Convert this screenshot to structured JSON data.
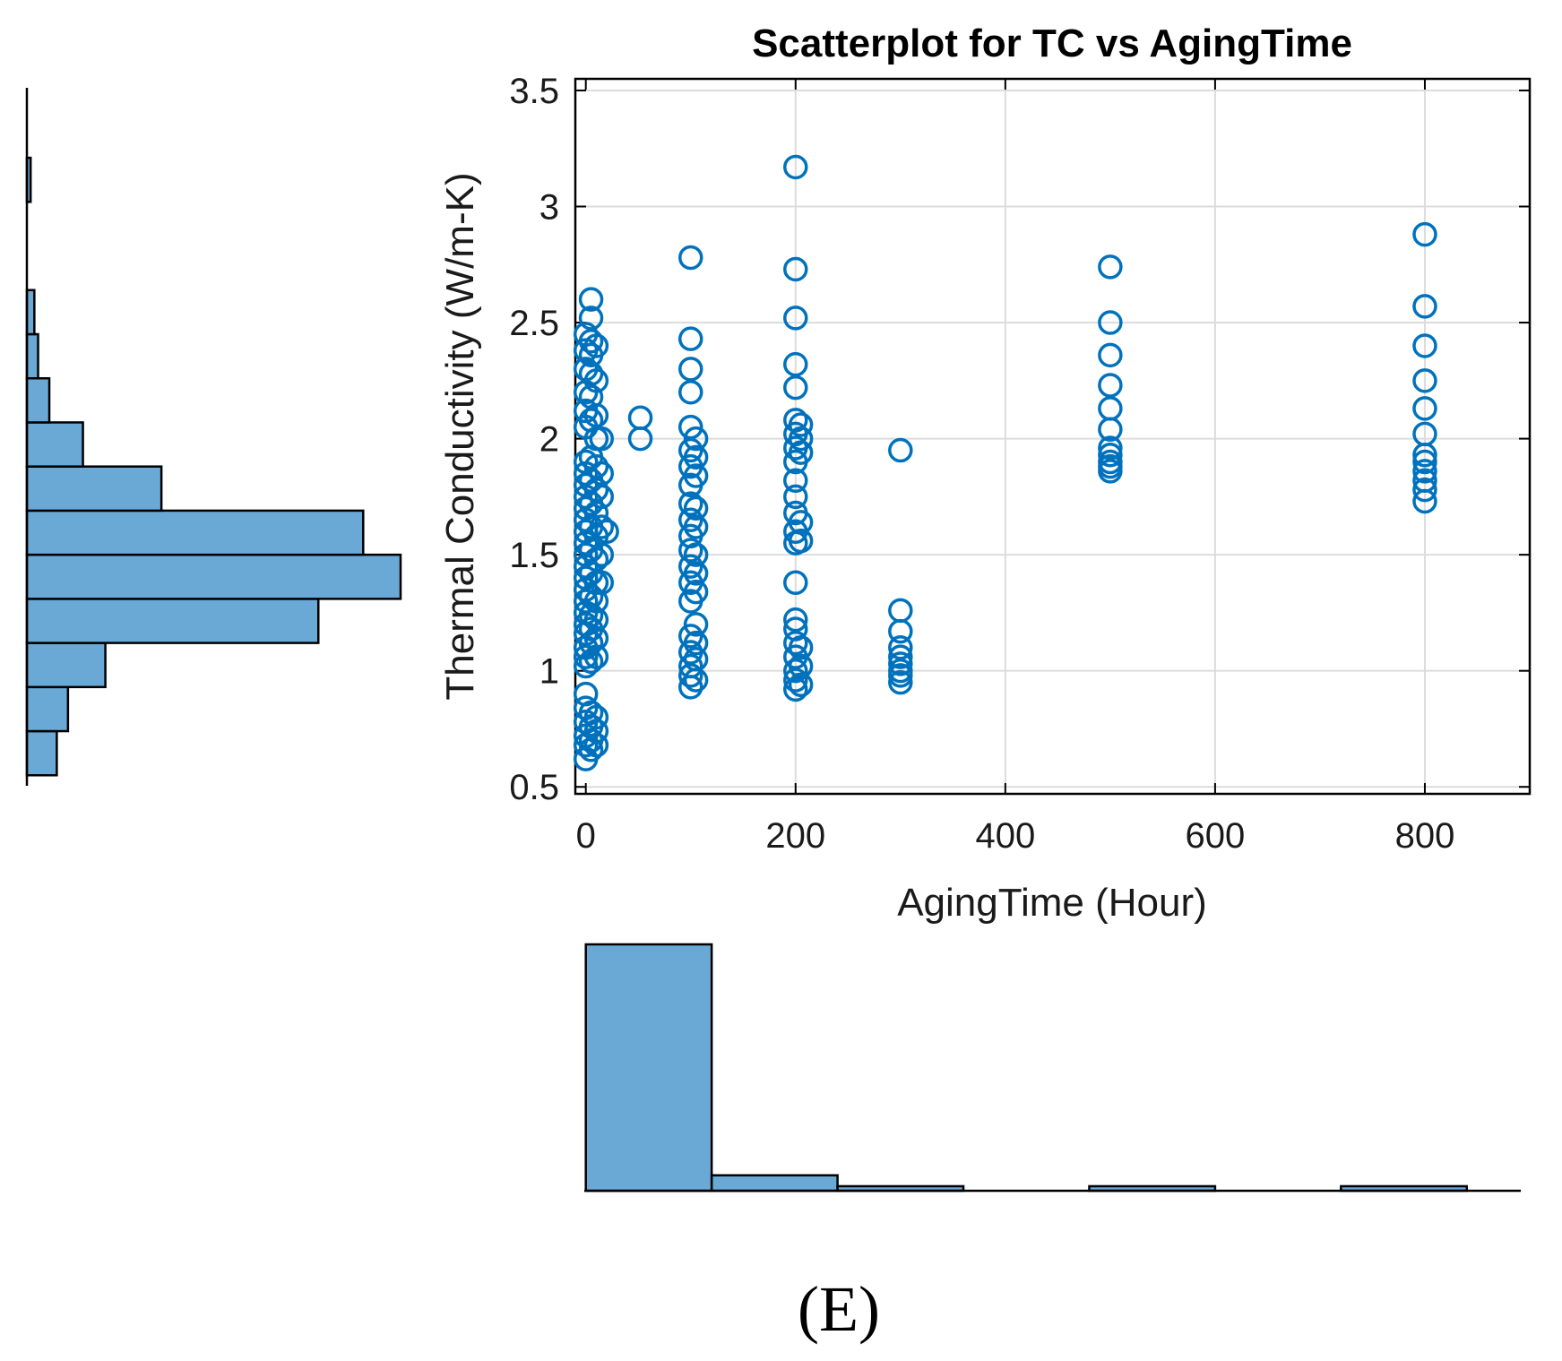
{
  "chart_data": [
    {
      "id": "scatter",
      "type": "scatter",
      "title": "Scatterplot for TC vs AgingTime",
      "xlabel": "AgingTime (Hour)",
      "ylabel": "Thermal Conductivity (W/m-K)",
      "xlim": [
        -10,
        900
      ],
      "ylim": [
        0.47,
        3.55
      ],
      "xticks": [
        0,
        200,
        400,
        600,
        800
      ],
      "yticks": [
        0.5,
        1,
        1.5,
        2,
        2.5,
        3,
        3.5
      ],
      "grid": true,
      "marker": "open-circle",
      "color": "#0072BD",
      "series": [
        {
          "name": "TC",
          "points": [
            [
              0,
              0.62
            ],
            [
              0,
              0.68
            ],
            [
              0,
              0.72
            ],
            [
              0,
              0.78
            ],
            [
              0,
              0.84
            ],
            [
              0,
              0.9
            ],
            [
              0,
              1.02
            ],
            [
              0,
              1.06
            ],
            [
              0,
              1.1
            ],
            [
              0,
              1.16
            ],
            [
              0,
              1.2
            ],
            [
              0,
              1.25
            ],
            [
              0,
              1.3
            ],
            [
              0,
              1.35
            ],
            [
              0,
              1.4
            ],
            [
              0,
              1.45
            ],
            [
              0,
              1.5
            ],
            [
              0,
              1.55
            ],
            [
              0,
              1.6
            ],
            [
              0,
              1.65
            ],
            [
              0,
              1.7
            ],
            [
              0,
              1.75
            ],
            [
              0,
              1.8
            ],
            [
              0,
              1.85
            ],
            [
              0,
              1.9
            ],
            [
              0,
              2.05
            ],
            [
              0,
              2.12
            ],
            [
              0,
              2.2
            ],
            [
              0,
              2.3
            ],
            [
              0,
              2.38
            ],
            [
              0,
              2.45
            ],
            [
              5,
              0.66
            ],
            [
              5,
              0.7
            ],
            [
              5,
              0.76
            ],
            [
              5,
              0.82
            ],
            [
              5,
              1.04
            ],
            [
              5,
              1.12
            ],
            [
              5,
              1.18
            ],
            [
              5,
              1.24
            ],
            [
              5,
              1.32
            ],
            [
              5,
              1.42
            ],
            [
              5,
              1.52
            ],
            [
              5,
              1.62
            ],
            [
              5,
              1.72
            ],
            [
              5,
              1.82
            ],
            [
              5,
              1.92
            ],
            [
              5,
              2.08
            ],
            [
              5,
              2.18
            ],
            [
              5,
              2.28
            ],
            [
              5,
              2.36
            ],
            [
              5,
              2.42
            ],
            [
              5,
              2.52
            ],
            [
              5,
              2.6
            ],
            [
              10,
              0.68
            ],
            [
              10,
              0.74
            ],
            [
              10,
              0.8
            ],
            [
              10,
              1.06
            ],
            [
              10,
              1.14
            ],
            [
              10,
              1.22
            ],
            [
              10,
              1.3
            ],
            [
              10,
              1.38
            ],
            [
              10,
              1.48
            ],
            [
              10,
              1.58
            ],
            [
              10,
              1.68
            ],
            [
              10,
              1.78
            ],
            [
              10,
              1.88
            ],
            [
              10,
              2.0
            ],
            [
              10,
              2.1
            ],
            [
              10,
              2.25
            ],
            [
              10,
              2.4
            ],
            [
              15,
              1.38
            ],
            [
              15,
              1.5
            ],
            [
              15,
              1.62
            ],
            [
              15,
              1.75
            ],
            [
              15,
              1.85
            ],
            [
              15,
              2.0
            ],
            [
              20,
              1.6
            ],
            [
              52,
              2.0
            ],
            [
              52,
              2.09
            ],
            [
              100,
              0.93
            ],
            [
              100,
              0.98
            ],
            [
              100,
              1.02
            ],
            [
              100,
              1.08
            ],
            [
              100,
              1.15
            ],
            [
              100,
              1.3
            ],
            [
              100,
              1.38
            ],
            [
              100,
              1.45
            ],
            [
              100,
              1.52
            ],
            [
              100,
              1.58
            ],
            [
              100,
              1.65
            ],
            [
              100,
              1.72
            ],
            [
              100,
              1.8
            ],
            [
              100,
              1.88
            ],
            [
              100,
              1.95
            ],
            [
              100,
              2.05
            ],
            [
              100,
              2.2
            ],
            [
              100,
              2.3
            ],
            [
              100,
              2.43
            ],
            [
              100,
              2.78
            ],
            [
              105,
              0.96
            ],
            [
              105,
              1.05
            ],
            [
              105,
              1.12
            ],
            [
              105,
              1.2
            ],
            [
              105,
              1.34
            ],
            [
              105,
              1.42
            ],
            [
              105,
              1.5
            ],
            [
              105,
              1.62
            ],
            [
              105,
              1.7
            ],
            [
              105,
              1.84
            ],
            [
              105,
              1.92
            ],
            [
              105,
              2.0
            ],
            [
              200,
              0.92
            ],
            [
              200,
              0.96
            ],
            [
              200,
              1.0
            ],
            [
              200,
              1.06
            ],
            [
              200,
              1.12
            ],
            [
              200,
              1.18
            ],
            [
              200,
              1.22
            ],
            [
              200,
              1.38
            ],
            [
              200,
              1.55
            ],
            [
              200,
              1.6
            ],
            [
              200,
              1.68
            ],
            [
              200,
              1.75
            ],
            [
              200,
              1.82
            ],
            [
              200,
              1.9
            ],
            [
              200,
              1.96
            ],
            [
              200,
              2.02
            ],
            [
              200,
              2.08
            ],
            [
              200,
              2.22
            ],
            [
              200,
              2.32
            ],
            [
              200,
              2.52
            ],
            [
              200,
              2.73
            ],
            [
              200,
              3.17
            ],
            [
              205,
              0.94
            ],
            [
              205,
              1.02
            ],
            [
              205,
              1.1
            ],
            [
              205,
              1.56
            ],
            [
              205,
              1.64
            ],
            [
              205,
              1.94
            ],
            [
              205,
              2.0
            ],
            [
              205,
              2.06
            ],
            [
              300,
              0.95
            ],
            [
              300,
              0.98
            ],
            [
              300,
              1.0
            ],
            [
              300,
              1.03
            ],
            [
              300,
              1.06
            ],
            [
              300,
              1.1
            ],
            [
              300,
              1.17
            ],
            [
              300,
              1.26
            ],
            [
              300,
              1.95
            ],
            [
              500,
              1.86
            ],
            [
              500,
              1.88
            ],
            [
              500,
              1.9
            ],
            [
              500,
              1.93
            ],
            [
              500,
              1.96
            ],
            [
              500,
              2.04
            ],
            [
              500,
              2.13
            ],
            [
              500,
              2.23
            ],
            [
              500,
              2.36
            ],
            [
              500,
              2.5
            ],
            [
              500,
              2.74
            ],
            [
              800,
              1.73
            ],
            [
              800,
              1.78
            ],
            [
              800,
              1.82
            ],
            [
              800,
              1.86
            ],
            [
              800,
              1.9
            ],
            [
              800,
              1.93
            ],
            [
              800,
              2.02
            ],
            [
              800,
              2.13
            ],
            [
              800,
              2.25
            ],
            [
              800,
              2.4
            ],
            [
              800,
              2.57
            ],
            [
              800,
              2.88
            ]
          ]
        }
      ]
    },
    {
      "id": "y-histogram",
      "type": "bar",
      "orientation": "horizontal",
      "color": "#6AA9D6",
      "ylim": [
        0.47,
        3.55
      ],
      "bin_edges": [
        0.55,
        0.74,
        0.93,
        1.12,
        1.31,
        1.5,
        1.69,
        1.88,
        2.07,
        2.26,
        2.45,
        2.64,
        2.83,
        3.02,
        3.21,
        3.4
      ],
      "counts": [
        8,
        11,
        21,
        78,
        100,
        90,
        36,
        15,
        6,
        3,
        2,
        0,
        0,
        1,
        0
      ]
    },
    {
      "id": "x-histogram",
      "type": "bar",
      "orientation": "vertical",
      "color": "#6AA9D6",
      "xlim": [
        -10,
        900
      ],
      "bin_edges": [
        0,
        120,
        240,
        360,
        480,
        600,
        720,
        840
      ],
      "counts": [
        271,
        17,
        5,
        0,
        5,
        0,
        5
      ]
    }
  ],
  "panel_label": "(E)"
}
